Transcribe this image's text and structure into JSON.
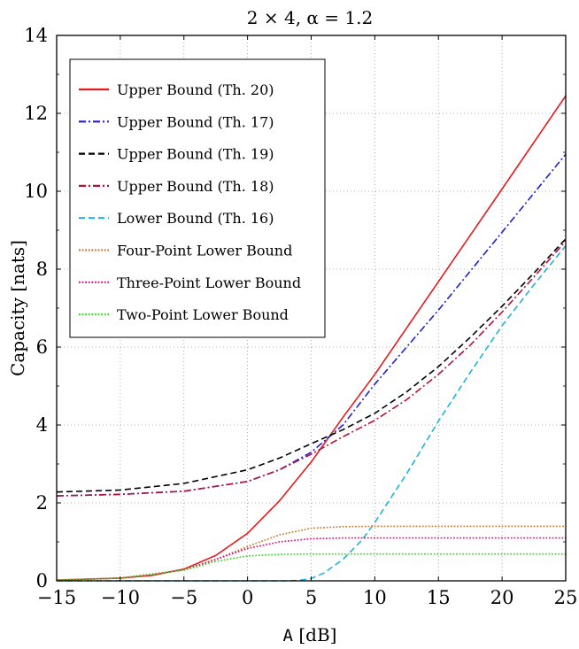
{
  "chart_data": {
    "type": "line",
    "title": "2 × 4, α = 1.2",
    "xlabel": "A [dB]",
    "ylabel": "Capacity [nats]",
    "xlim": [
      -15,
      25
    ],
    "ylim": [
      0,
      14
    ],
    "xticks": [
      "−15",
      "−10",
      "−5",
      "0",
      "5",
      "10",
      "15",
      "20",
      "25"
    ],
    "yticks": [
      "0",
      "2",
      "4",
      "6",
      "8",
      "10",
      "12",
      "14"
    ],
    "grid": true,
    "legend_position": "top-left",
    "series": [
      {
        "name": "Upper Bound (Th. 20)",
        "color": "#e41a1c",
        "style": "solid",
        "x": [
          -15,
          -10,
          -7.5,
          -5,
          -2.5,
          0,
          2.5,
          5,
          7.5,
          10,
          15,
          20,
          25
        ],
        "y": [
          0.02,
          0.07,
          0.14,
          0.3,
          0.65,
          1.22,
          2.05,
          3.05,
          4.2,
          5.3,
          7.68,
          10.06,
          12.45
        ]
      },
      {
        "name": "Upper Bound (Th. 17)",
        "color": "#1f1fd6",
        "style": "dashdot",
        "x": [
          -15,
          -10,
          -5,
          0,
          2.5,
          5,
          7.5,
          10,
          12.5,
          15,
          17.5,
          20,
          22.5,
          25
        ],
        "y": [
          2.18,
          2.22,
          2.3,
          2.55,
          2.85,
          3.3,
          4.0,
          5.05,
          6.0,
          6.95,
          7.95,
          8.95,
          9.95,
          10.95
        ]
      },
      {
        "name": "Upper Bound (Th. 19)",
        "color": "#000000",
        "style": "dashed",
        "x": [
          -15,
          -10,
          -5,
          0,
          2.5,
          5,
          7.5,
          10,
          12.5,
          15,
          17.5,
          20,
          22.5,
          25
        ],
        "y": [
          2.28,
          2.33,
          2.5,
          2.85,
          3.15,
          3.52,
          3.88,
          4.3,
          4.85,
          5.5,
          6.25,
          7.05,
          7.9,
          8.78
        ]
      },
      {
        "name": "Upper Bound (Th. 18)",
        "color": "#b5123c",
        "style": "dashdot",
        "x": [
          -15,
          -10,
          -5,
          0,
          2.5,
          5,
          7.5,
          10,
          12.5,
          15,
          17.5,
          20,
          22.5,
          25
        ],
        "y": [
          2.18,
          2.22,
          2.3,
          2.55,
          2.85,
          3.25,
          3.7,
          4.12,
          4.65,
          5.3,
          6.05,
          6.9,
          7.8,
          8.72
        ]
      },
      {
        "name": "Lower Bound (Th. 16)",
        "color": "#1fb4e0",
        "style": "dashed",
        "x": [
          -15,
          0,
          3,
          4,
          5,
          6,
          7.5,
          9,
          10,
          12.5,
          15,
          17.5,
          20,
          22.5,
          25
        ],
        "y": [
          0.0,
          0.0,
          0.0,
          0.01,
          0.06,
          0.2,
          0.55,
          1.05,
          1.5,
          2.75,
          4.1,
          5.35,
          6.55,
          7.6,
          8.6
        ]
      },
      {
        "name": "Four-Point Lower Bound",
        "color": "#c87b2e",
        "style": "dotted",
        "x": [
          -15,
          -10,
          -5,
          -2.5,
          0,
          2.5,
          5,
          7.5,
          10,
          25
        ],
        "y": [
          0.02,
          0.07,
          0.28,
          0.55,
          0.88,
          1.18,
          1.35,
          1.39,
          1.4,
          1.4
        ]
      },
      {
        "name": "Three-Point Lower Bound",
        "color": "#e0147f",
        "style": "dotted",
        "x": [
          -15,
          -10,
          -5,
          -2.5,
          0,
          2.5,
          5,
          7.5,
          10,
          25
        ],
        "y": [
          0.02,
          0.07,
          0.28,
          0.55,
          0.83,
          1.0,
          1.08,
          1.1,
          1.1,
          1.1
        ]
      },
      {
        "name": "Two-Point Lower Bound",
        "color": "#33dd22",
        "style": "dotted",
        "x": [
          -15,
          -10,
          -5,
          -2.5,
          0,
          2.5,
          5,
          7.5,
          25
        ],
        "y": [
          0.02,
          0.07,
          0.27,
          0.5,
          0.64,
          0.68,
          0.69,
          0.69,
          0.69
        ]
      }
    ]
  }
}
